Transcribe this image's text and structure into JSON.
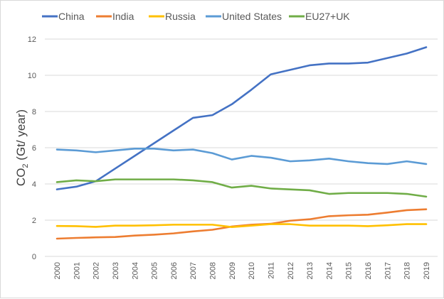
{
  "chart_data": {
    "type": "line",
    "title": "",
    "xlabel": "",
    "ylabel": "CO2 (Gt/ year)",
    "ylabel_parts": {
      "main": "CO",
      "sub": "2",
      "rest": " (Gt/ year)"
    },
    "ylim": [
      0,
      12
    ],
    "yticks": [
      0,
      2,
      4,
      6,
      8,
      10,
      12
    ],
    "grid": true,
    "legend_placement": "top",
    "x": [
      "2000",
      "2001",
      "2002",
      "2003",
      "2004",
      "2005",
      "2006",
      "2007",
      "2008",
      "2009",
      "2010",
      "2011",
      "2012",
      "2013",
      "2014",
      "2015",
      "2016",
      "2017",
      "2018",
      "2019"
    ],
    "series": [
      {
        "name": "China",
        "color": "#4472c4",
        "values": [
          3.7,
          3.85,
          4.15,
          4.85,
          5.55,
          6.25,
          6.95,
          7.65,
          7.8,
          8.4,
          9.2,
          10.05,
          10.3,
          10.55,
          10.65,
          10.65,
          10.7,
          10.95,
          11.2,
          11.55
        ]
      },
      {
        "name": "India",
        "color": "#ed7d31",
        "values": [
          0.98,
          1.02,
          1.05,
          1.07,
          1.15,
          1.2,
          1.27,
          1.38,
          1.47,
          1.65,
          1.75,
          1.8,
          1.97,
          2.05,
          2.22,
          2.27,
          2.3,
          2.42,
          2.55,
          2.6
        ]
      },
      {
        "name": "Russia",
        "color": "#ffc000",
        "values": [
          1.68,
          1.67,
          1.63,
          1.7,
          1.7,
          1.72,
          1.75,
          1.75,
          1.75,
          1.62,
          1.7,
          1.78,
          1.78,
          1.7,
          1.7,
          1.7,
          1.67,
          1.72,
          1.78,
          1.78
        ]
      },
      {
        "name": "United States",
        "color": "#5b9bd5",
        "values": [
          5.9,
          5.85,
          5.75,
          5.85,
          5.95,
          5.95,
          5.85,
          5.9,
          5.7,
          5.35,
          5.55,
          5.45,
          5.25,
          5.3,
          5.4,
          5.25,
          5.15,
          5.1,
          5.25,
          5.1
        ]
      },
      {
        "name": "EU27+UK",
        "color": "#70ad47",
        "values": [
          4.1,
          4.2,
          4.15,
          4.25,
          4.25,
          4.25,
          4.25,
          4.2,
          4.1,
          3.8,
          3.9,
          3.75,
          3.7,
          3.65,
          3.45,
          3.5,
          3.5,
          3.5,
          3.45,
          3.3
        ]
      }
    ]
  }
}
